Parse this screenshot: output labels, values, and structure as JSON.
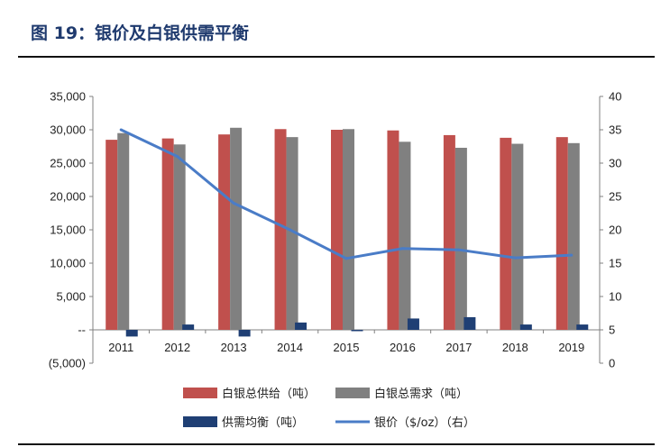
{
  "figure": {
    "title": "图 19：银价及白银供需平衡"
  },
  "colors": {
    "title": "#1f3a6e",
    "supply": "#c0504d",
    "demand": "#808080",
    "balance": "#1f3f74",
    "price": "#4a7cc7"
  },
  "chart_data": {
    "type": "bar",
    "categories": [
      "2011",
      "2012",
      "2013",
      "2014",
      "2015",
      "2016",
      "2017",
      "2018",
      "2019"
    ],
    "series": [
      {
        "name": "白银总供给（吨）",
        "type": "bar",
        "axis": "left",
        "values": [
          28500,
          28700,
          29300,
          30100,
          30000,
          29900,
          29200,
          28800,
          28900
        ]
      },
      {
        "name": "白银总需求（吨）",
        "type": "bar",
        "axis": "left",
        "values": [
          29500,
          27800,
          30300,
          28900,
          30100,
          28200,
          27300,
          27900,
          28000
        ]
      },
      {
        "name": "供需均衡（吨）",
        "type": "bar",
        "axis": "left",
        "values": [
          -1000,
          800,
          -1000,
          1100,
          -200,
          1700,
          1900,
          800,
          800
        ]
      },
      {
        "name": "银价（$/oz）（右）",
        "type": "line",
        "axis": "right",
        "values": [
          35,
          31,
          24,
          20,
          15.7,
          17.2,
          17,
          15.8,
          16.2
        ]
      }
    ],
    "left_axis": {
      "ylim": [
        -5000,
        35000
      ],
      "ticks": [
        "(5,000)",
        "--",
        "5,000",
        "10,000",
        "15,000",
        "20,000",
        "25,000",
        "30,000",
        "35,000"
      ]
    },
    "right_axis": {
      "ylim": [
        0,
        40
      ],
      "ticks": [
        "0",
        "5",
        "10",
        "15",
        "20",
        "25",
        "30",
        "35",
        "40"
      ]
    },
    "grid": false,
    "legend_position": "bottom"
  }
}
